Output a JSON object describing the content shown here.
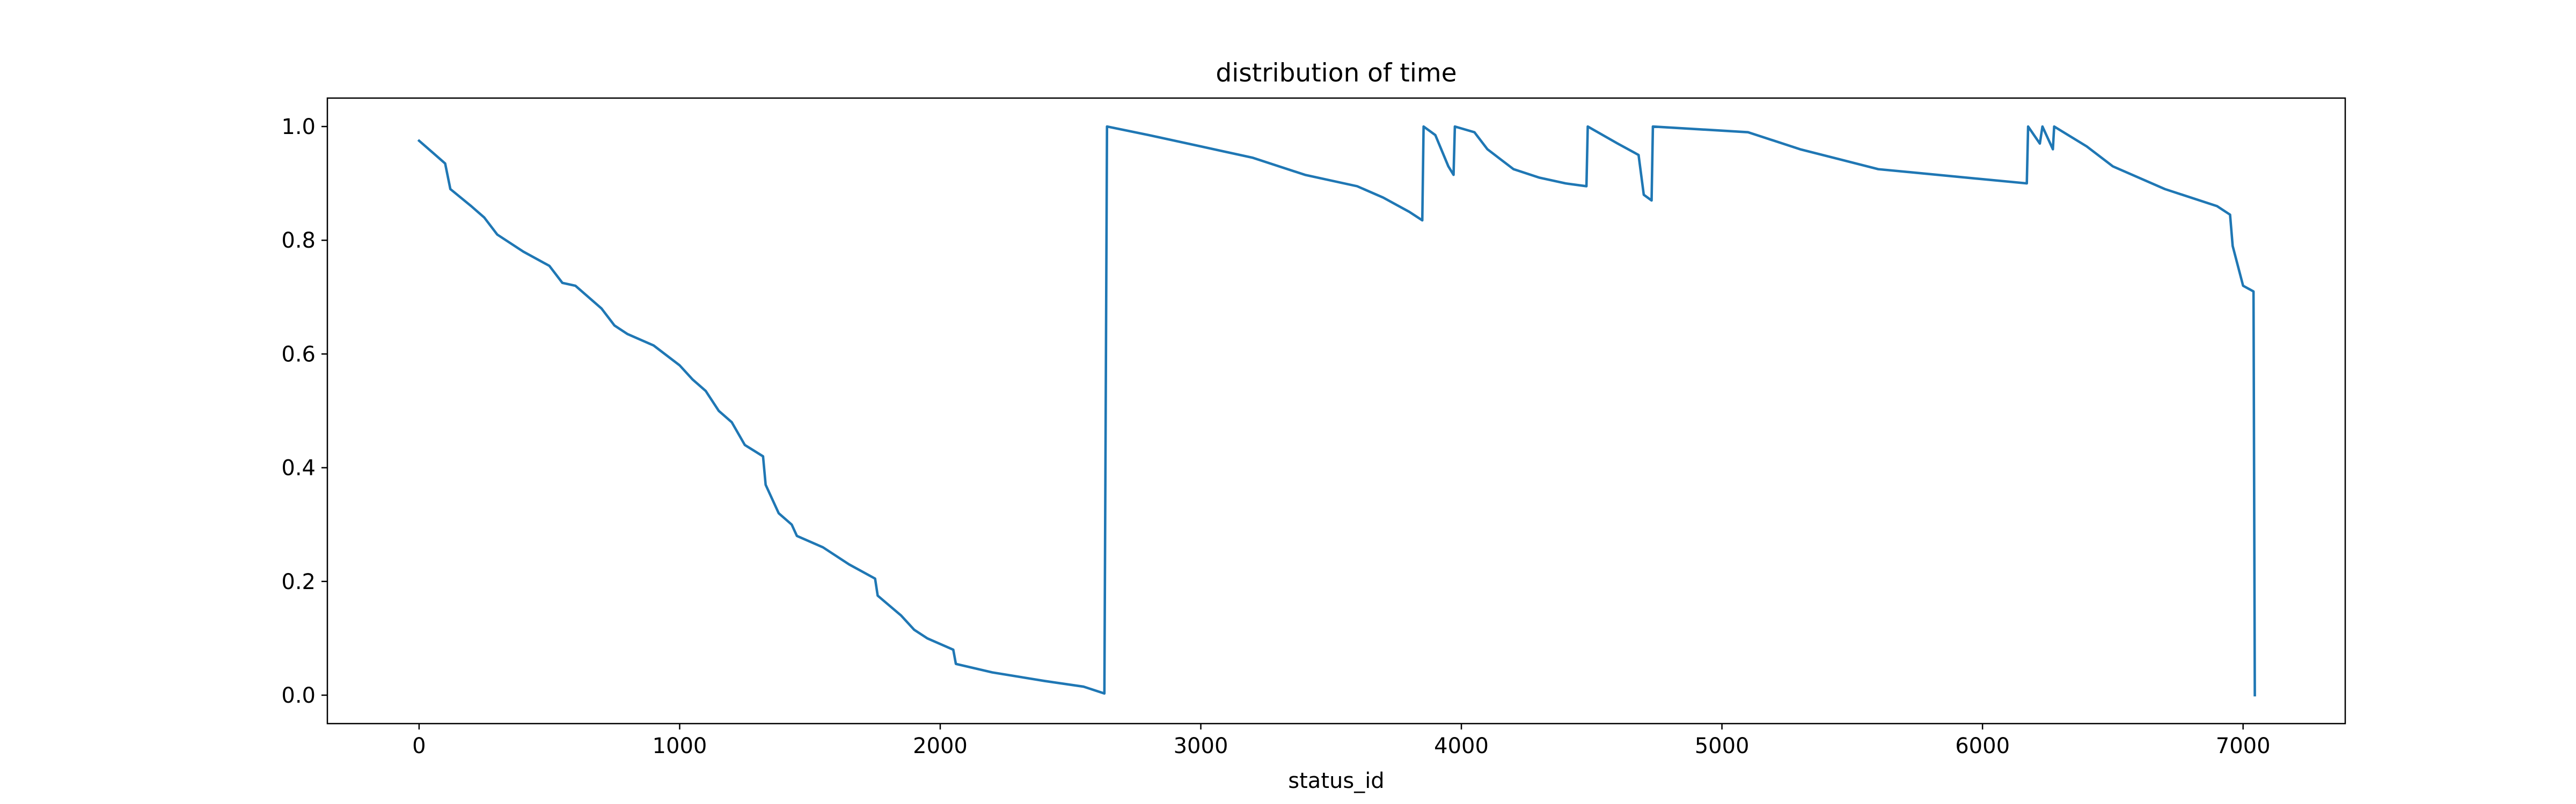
{
  "chart_data": {
    "type": "line",
    "title": "distribution of time",
    "xlabel": "status_id",
    "x": [
      0,
      50,
      100,
      120,
      200,
      250,
      300,
      400,
      500,
      550,
      600,
      700,
      750,
      800,
      900,
      1000,
      1050,
      1100,
      1150,
      1200,
      1250,
      1320,
      1330,
      1380,
      1430,
      1450,
      1550,
      1650,
      1750,
      1760,
      1850,
      1900,
      1950,
      2050,
      2060,
      2200,
      2400,
      2550,
      2630,
      2640,
      2800,
      3000,
      3200,
      3400,
      3600,
      3700,
      3800,
      3850,
      3855,
      3900,
      3950,
      3970,
      3975,
      4050,
      4100,
      4200,
      4300,
      4400,
      4480,
      4485,
      4600,
      4680,
      4700,
      4730,
      4735,
      5100,
      5300,
      5600,
      6170,
      6175,
      6220,
      6230,
      6270,
      6275,
      6400,
      6500,
      6700,
      6900,
      6950,
      6960,
      7000,
      7040,
      7045
    ],
    "values": [
      0.975,
      0.955,
      0.935,
      0.89,
      0.86,
      0.84,
      0.81,
      0.78,
      0.755,
      0.725,
      0.72,
      0.68,
      0.65,
      0.635,
      0.615,
      0.58,
      0.555,
      0.535,
      0.5,
      0.48,
      0.44,
      0.42,
      0.37,
      0.32,
      0.3,
      0.28,
      0.26,
      0.23,
      0.205,
      0.175,
      0.14,
      0.115,
      0.1,
      0.08,
      0.055,
      0.04,
      0.025,
      0.015,
      0.003,
      1.0,
      0.985,
      0.965,
      0.945,
      0.915,
      0.895,
      0.875,
      0.85,
      0.835,
      1.0,
      0.985,
      0.93,
      0.915,
      1.0,
      0.99,
      0.96,
      0.925,
      0.91,
      0.9,
      0.895,
      1.0,
      0.97,
      0.95,
      0.88,
      0.87,
      1.0,
      0.99,
      0.96,
      0.925,
      0.9,
      1.0,
      0.97,
      1.0,
      0.96,
      1.0,
      0.965,
      0.93,
      0.89,
      0.86,
      0.845,
      0.79,
      0.72,
      0.71,
      0.0
    ],
    "color": "#1f77b4",
    "xlim": [
      -352,
      7392
    ],
    "xticks": [
      0,
      1000,
      2000,
      3000,
      4000,
      5000,
      6000,
      7000
    ],
    "ylim": [
      -0.05,
      1.05
    ],
    "yticks": [
      {
        "value": 0,
        "label": "0.0"
      },
      0.2,
      0.4,
      0.6,
      0.8,
      {
        "value": 1,
        "label": "1.0"
      }
    ]
  }
}
